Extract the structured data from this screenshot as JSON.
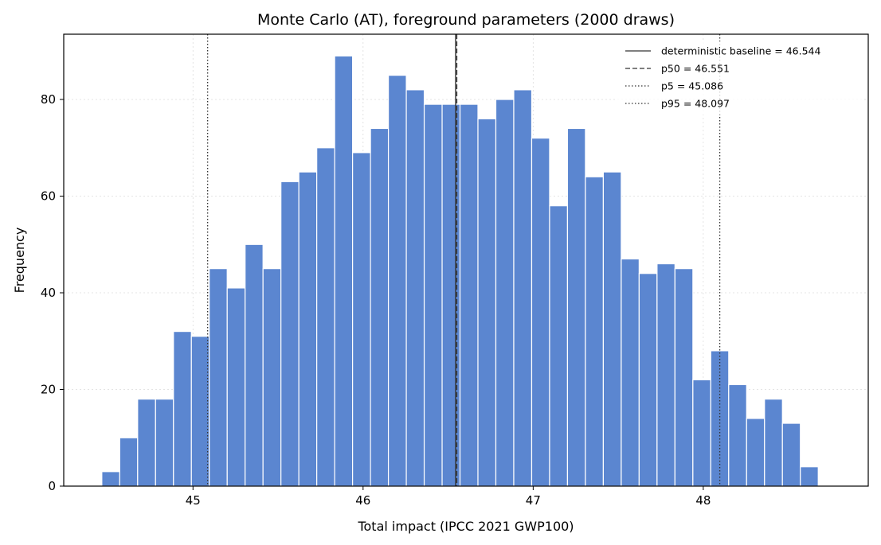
{
  "chart_data": {
    "type": "bar",
    "title": "Monte Carlo (AT), foreground parameters (2000 draws)",
    "xlabel": "Total impact (IPCC 2021 GWP100)",
    "ylabel": "Frequency",
    "xlim": [
      44.24,
      48.97
    ],
    "ylim": [
      0,
      93.5
    ],
    "xticks": [
      "45",
      "46",
      "47",
      "48"
    ],
    "yticks": [
      "0",
      "20",
      "40",
      "60",
      "80"
    ],
    "grid": true,
    "legend_position": "top-right",
    "bar_color": "#5b86d0",
    "bin_width": 0.1053,
    "bin_start": 44.464,
    "values": [
      3,
      10,
      18,
      18,
      32,
      31,
      45,
      41,
      50,
      45,
      63,
      65,
      70,
      89,
      69,
      74,
      85,
      82,
      79,
      79,
      79,
      76,
      80,
      82,
      72,
      58,
      74,
      64,
      65,
      47,
      44,
      46,
      45,
      22,
      28,
      21,
      14,
      18,
      13,
      4
    ],
    "reference_lines": [
      {
        "label": "deterministic baseline = 46.544",
        "value": 46.544,
        "style": "solid"
      },
      {
        "label": "p50 = 46.551",
        "value": 46.551,
        "style": "dashed"
      },
      {
        "label": "p5 = 45.086",
        "value": 45.086,
        "style": "dotted"
      },
      {
        "label": "p95 = 48.097",
        "value": 48.097,
        "style": "dotted"
      }
    ]
  }
}
